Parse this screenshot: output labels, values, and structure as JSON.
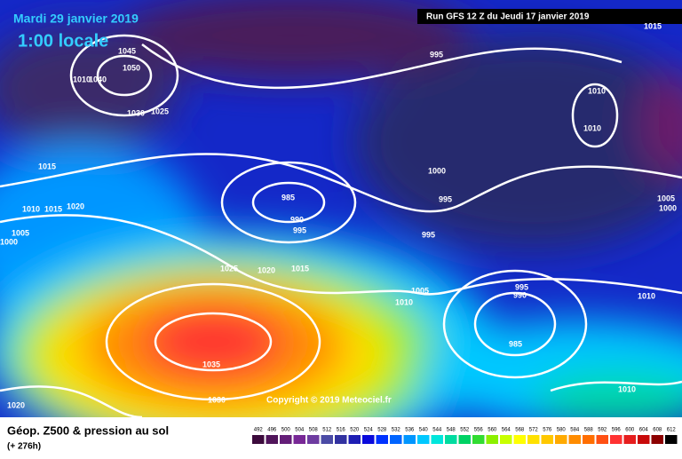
{
  "header": {
    "date": "Mardi 29 janvier 2019",
    "time": "1:00 locale",
    "run": "Run GFS 12 Z du Jeudi 17 janvier 2019"
  },
  "copyright": "Copyright © 2019 Meteociel.fr",
  "footer": {
    "title": "Géop. Z500 & pression au sol",
    "lead": "(+ 276h)"
  },
  "isobar_labels": [
    1015,
    1045,
    1050,
    1010,
    1040,
    1030,
    1025,
    995,
    1010,
    1010,
    1015,
    1000,
    985,
    995,
    990,
    995,
    1010,
    1015,
    1020,
    1005,
    1000,
    995,
    1005,
    1000,
    1025,
    1020,
    1015,
    1005,
    1010,
    995,
    990,
    1010,
    985,
    1035,
    1030,
    1010,
    1020
  ],
  "legend": {
    "values": [
      492,
      496,
      500,
      504,
      508,
      512,
      516,
      520,
      524,
      528,
      532,
      536,
      540,
      544,
      548,
      552,
      556,
      560,
      564,
      568,
      572,
      576,
      580,
      584,
      588,
      592,
      596,
      600,
      604,
      608,
      612
    ],
    "colors": [
      "#3c0a3c",
      "#50145a",
      "#641e78",
      "#782896",
      "#6e3ca0",
      "#4b4ba5",
      "#3232a0",
      "#1e1eb4",
      "#0a0adc",
      "#0032ff",
      "#0064ff",
      "#0096ff",
      "#00c8ff",
      "#00e6dc",
      "#00dca0",
      "#00d264",
      "#32dc32",
      "#8cf000",
      "#c8ff00",
      "#ffff00",
      "#ffe100",
      "#ffc800",
      "#ffaa00",
      "#ff8c00",
      "#ff6e00",
      "#ff5014",
      "#ff3232",
      "#e61e1e",
      "#c80a0a",
      "#8c0000",
      "#000000"
    ]
  }
}
